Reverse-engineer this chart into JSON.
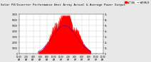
{
  "title": "Solar PV/Inverter Performance West Array Actual & Average Power Output",
  "title_fontsize": 3.0,
  "bg_color": "#e8e8e8",
  "plot_bg_color": "#ffffff",
  "actual_color": "#ff0000",
  "average_color": "#0000cc",
  "grid_color": "#aaaaaa",
  "ylim": [
    0,
    7000
  ],
  "yticks": [
    0,
    1000,
    2000,
    3000,
    4000,
    5000,
    6000,
    7000
  ],
  "ytick_labels_left": [
    "0",
    "1000",
    "2000",
    "3000",
    "4000",
    "5000",
    "6000",
    "7000"
  ],
  "ytick_labels_right": [
    "0",
    "1k",
    "2k",
    "3k",
    "4k",
    "5k",
    "6k",
    "7k"
  ],
  "legend_actual": "ACTUAL",
  "legend_average": "AVERAGE",
  "num_points": 288,
  "peak_actual": 6800,
  "peak_average": 5000
}
